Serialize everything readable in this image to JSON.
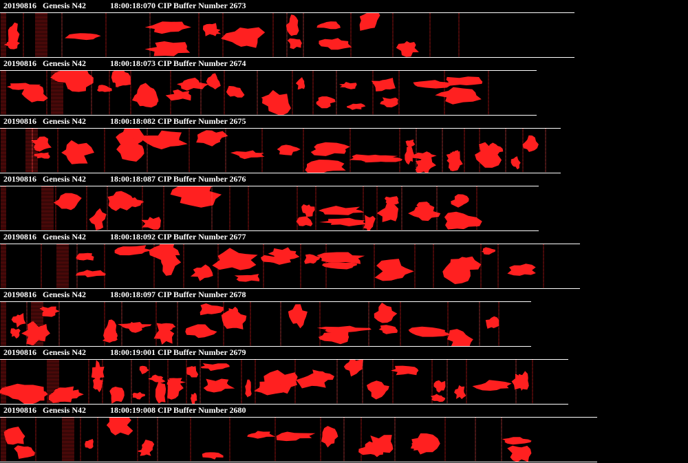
{
  "colors": {
    "background": "#000000",
    "particle": "#ff2020",
    "text": "#ffffff"
  },
  "strips": [
    {
      "date": "20190816",
      "probe": "Genesis N42",
      "time": "18:00:18:070",
      "label": "CIP Buffer Number 2673"
    },
    {
      "date": "20190816",
      "probe": "Genesis N42",
      "time": "18:00:18:073",
      "label": "CIP Buffer Number 2674"
    },
    {
      "date": "20190816",
      "probe": "Genesis N42",
      "time": "18:00:18:082",
      "label": "CIP Buffer Number 2675"
    },
    {
      "date": "20190816",
      "probe": "Genesis N42",
      "time": "18:00:18:087",
      "label": "CIP Buffer Number 2676"
    },
    {
      "date": "20190816",
      "probe": "Genesis N42",
      "time": "18:00:18:092",
      "label": "CIP Buffer Number 2677"
    },
    {
      "date": "20190816",
      "probe": "Genesis N42",
      "time": "18:00:18:097",
      "label": "CIP Buffer Number 2678"
    },
    {
      "date": "20190816",
      "probe": "Genesis N42",
      "time": "18:00:19:001",
      "label": "CIP Buffer Number 2679"
    },
    {
      "date": "20190816",
      "probe": "Genesis N42",
      "time": "18:00:19:008",
      "label": "CIP Buffer Number 2680"
    }
  ]
}
